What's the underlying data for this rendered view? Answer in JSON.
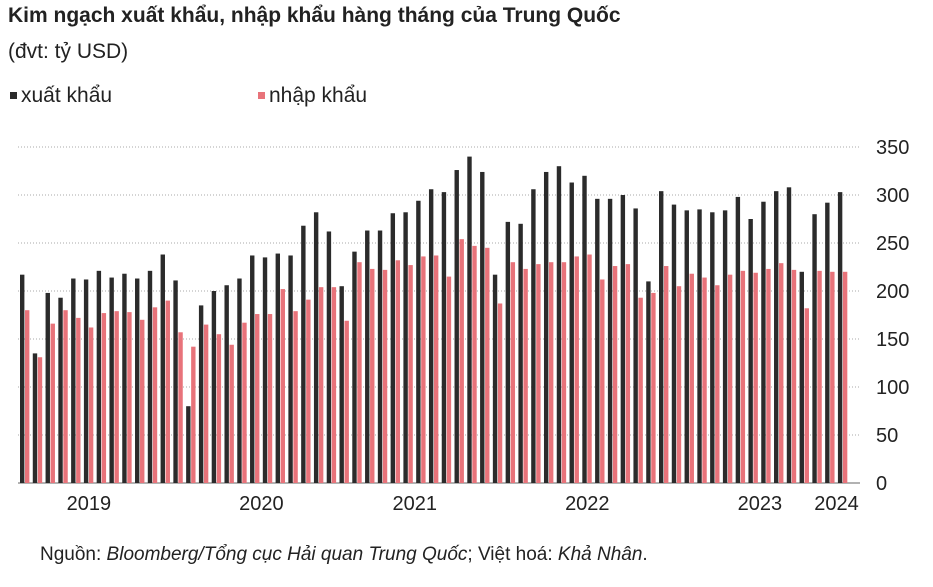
{
  "chart_data": {
    "type": "bar",
    "title": "Kim ngạch xuất khẩu, nhập khẩu hàng tháng của Trung Quốc",
    "subtitle": "(đvt: tỷ USD)",
    "source": [
      "Nguồn: ",
      "Bloomberg/Tổng cục Hải quan Trung Quốc",
      "; Việt hoá: ",
      "Khả Nhân",
      "."
    ],
    "categories": [
      null,
      null,
      null,
      null,
      null,
      null,
      null,
      null,
      null,
      null,
      null,
      null,
      null,
      null,
      null,
      null,
      null,
      null,
      null,
      null,
      null,
      null,
      null,
      null,
      null,
      null,
      null,
      null,
      null,
      null,
      null,
      null,
      null,
      null,
      null,
      null,
      null,
      null,
      null,
      null,
      null,
      null,
      null,
      null,
      null,
      null,
      null,
      null,
      null,
      null,
      null,
      null,
      null,
      null,
      null,
      null,
      null,
      null,
      null,
      null,
      null,
      null,
      null,
      null,
      null
    ],
    "series": [
      {
        "name": "xuất khẩu",
        "color": "#2b2b2b",
        "values": [
          217,
          135,
          198,
          193,
          213,
          212,
          221,
          214,
          218,
          213,
          221,
          238,
          211,
          80,
          185,
          200,
          206,
          213,
          237,
          235,
          239,
          237,
          268,
          282,
          262,
          205,
          241,
          263,
          263,
          281,
          282,
          294,
          306,
          303,
          326,
          340,
          324,
          217,
          272,
          270,
          306,
          324,
          330,
          313,
          320,
          296,
          296,
          300,
          286,
          210,
          304,
          290,
          284,
          285,
          282,
          284,
          298,
          275,
          293,
          304,
          308,
          220,
          280,
          292,
          303
        ]
      },
      {
        "name": "nhập khẩu",
        "color": "#e8737a",
        "values": [
          180,
          131,
          166,
          180,
          172,
          162,
          177,
          179,
          178,
          170,
          183,
          190,
          157,
          142,
          165,
          155,
          144,
          167,
          176,
          176,
          202,
          179,
          191,
          204,
          204,
          169,
          230,
          223,
          222,
          232,
          227,
          236,
          237,
          215,
          254,
          247,
          245,
          187,
          230,
          223,
          228,
          230,
          230,
          236,
          238,
          212,
          226,
          228,
          193,
          198,
          226,
          205,
          218,
          214,
          206,
          217,
          221,
          219,
          223,
          229,
          222,
          182,
          221,
          220,
          220
        ]
      }
    ],
    "ylim": [
      0,
      350
    ],
    "yticks": [
      0,
      50,
      100,
      150,
      200,
      250,
      300,
      350
    ],
    "grid": true,
    "xticks": [
      {
        "value": 5,
        "label": "2019"
      },
      {
        "value": 18.5,
        "label": "2020"
      },
      {
        "value": 30.5,
        "label": "2021"
      },
      {
        "value": 44,
        "label": "2022"
      },
      {
        "value": 57.5,
        "label": "2023"
      },
      {
        "value": 63.5,
        "label": "2024"
      }
    ],
    "legend": "top-left"
  }
}
